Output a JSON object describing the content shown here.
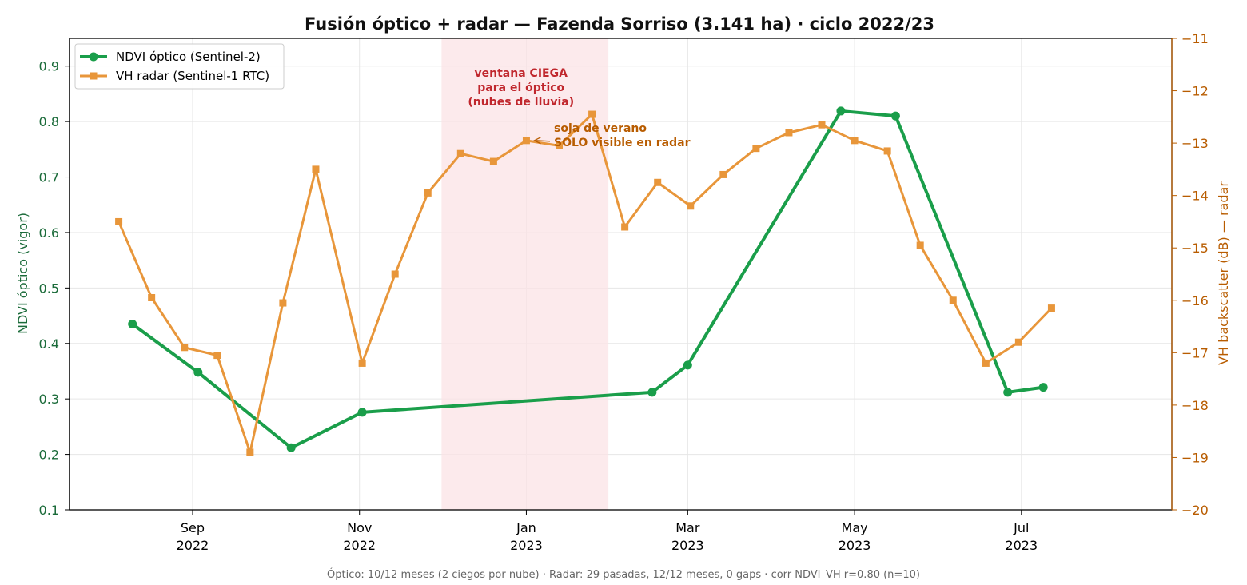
{
  "chart_data": {
    "type": "line",
    "title": "Fusión óptico + radar — Fazenda Sorriso (3.141 ha) · ciclo 2022/23",
    "ylabel_left": "NDVI óptico (vigor)",
    "ylabel_right": "VH backscatter (dB) — radar",
    "ylim_left": [
      0.1,
      0.95
    ],
    "ylim_right": [
      -20,
      -11
    ],
    "xlim": [
      "2022-07-18",
      "2023-08-25"
    ],
    "yticks_left": [
      "0.1",
      "0.2",
      "0.3",
      "0.4",
      "0.5",
      "0.6",
      "0.7",
      "0.8",
      "0.9"
    ],
    "yticks_right": [
      "−20",
      "−19",
      "−18",
      "−17",
      "−16",
      "−15",
      "−14",
      "−13",
      "−12",
      "−11"
    ],
    "xticks": [
      {
        "date": "2022-09-01",
        "month": "Sep",
        "year": "2022"
      },
      {
        "date": "2022-11-01",
        "month": "Nov",
        "year": "2022"
      },
      {
        "date": "2023-01-01",
        "month": "Jan",
        "year": "2023"
      },
      {
        "date": "2023-03-01",
        "month": "Mar",
        "year": "2023"
      },
      {
        "date": "2023-05-01",
        "month": "May",
        "year": "2023"
      },
      {
        "date": "2023-07-01",
        "month": "Jul",
        "year": "2023"
      }
    ],
    "grid": true,
    "legend_position": "top-left",
    "series": [
      {
        "name": "NDVI óptico (Sentinel-2)",
        "axis": "left",
        "color": "#1a9e4a",
        "marker": "circle",
        "x": [
          "2022-08-10",
          "2022-09-03",
          "2022-10-07",
          "2022-11-02",
          "2023-02-16",
          "2023-03-01",
          "2023-04-26",
          "2023-05-16",
          "2023-06-26",
          "2023-07-09"
        ],
        "y": [
          0.435,
          0.348,
          0.212,
          0.276,
          0.312,
          0.361,
          0.819,
          0.81,
          0.312,
          0.321
        ]
      },
      {
        "name": "VH radar (Sentinel-1 RTC)",
        "axis": "right",
        "color": "#e8963a",
        "marker": "square",
        "x": [
          "2022-08-05",
          "2022-08-17",
          "2022-08-29",
          "2022-09-10",
          "2022-09-22",
          "2022-10-04",
          "2022-10-16",
          "2022-11-02",
          "2022-11-14",
          "2022-11-26",
          "2022-12-08",
          "2022-12-20",
          "2023-01-01",
          "2023-01-13",
          "2023-01-25",
          "2023-02-06",
          "2023-02-18",
          "2023-03-02",
          "2023-03-14",
          "2023-03-26",
          "2023-04-07",
          "2023-04-19",
          "2023-05-01",
          "2023-05-13",
          "2023-05-25",
          "2023-06-06",
          "2023-06-18",
          "2023-06-30",
          "2023-07-12"
        ],
        "y": [
          -14.5,
          -15.95,
          -16.9,
          -17.05,
          -18.9,
          -16.05,
          -13.5,
          -17.2,
          -15.5,
          -13.95,
          -13.2,
          -13.35,
          -12.95,
          -13.05,
          -12.45,
          -14.6,
          -13.75,
          -14.2,
          -13.6,
          -13.1,
          -12.8,
          -12.65,
          -12.95,
          -13.15,
          -14.95,
          -16.0,
          -17.2,
          -16.8,
          -16.15
        ]
      }
    ],
    "shaded_region": {
      "start": "2022-12-01",
      "end": "2023-01-31",
      "color": "#fbe3e6"
    },
    "annotations": [
      {
        "lines": [
          "ventana CIEGA",
          "para el óptico",
          "(nubes de lluvia)"
        ],
        "color": "#c0272d"
      },
      {
        "lines": [
          "soja de verano",
          "SOLO visible en radar"
        ],
        "color": "#b85c00",
        "arrow_to": {
          "x": "2023-01-01",
          "y": -12.95
        }
      }
    ],
    "footer": "Óptico: 10/12 meses (2 ciegos por nube) · Radar: 29 pasadas, 12/12 meses, 0 gaps · corr NDVI–VH r=0.80 (n=10)"
  }
}
